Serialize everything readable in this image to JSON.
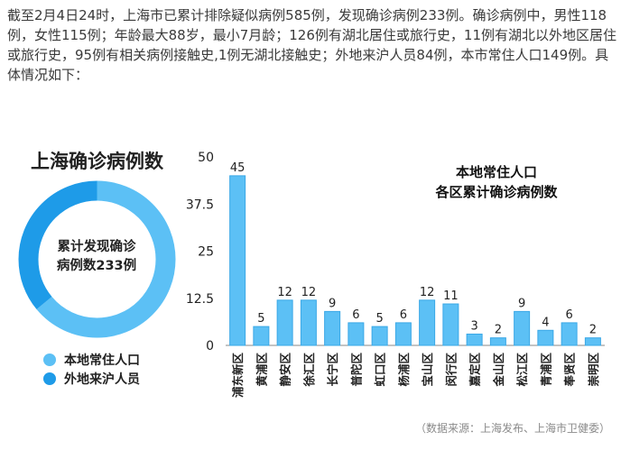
{
  "paragraph": "截至2月4日24时，上海市已累计排除疑似病例585例，发现确诊病例233例。确诊病例中，男性118例，女性115例；年龄最大88岁，最小7月龄；126例有湖北居住或旅行史，11例有湖北以外地区居住或旅行史，95例有相关病例接触史,1例无湖北接触史；外地来沪人员84例，本市常住人口149例。具体情况如下：",
  "donut": {
    "title": "上海确诊病例数",
    "center_line1": "累计发现确诊",
    "center_line2": "病例数233例",
    "segments": [
      {
        "label": "本地常住人口",
        "value": 149,
        "color": "#5cc0f5"
      },
      {
        "label": "外地来沪人员",
        "value": 84,
        "color": "#1e9be8"
      }
    ]
  },
  "chart_data": {
    "type": "bar",
    "title_line1": "本地常住人口",
    "title_line2": "各区累计确诊病例数",
    "categories": [
      "浦东新区",
      "黄浦区",
      "静安区",
      "徐汇区",
      "长宁区",
      "普陀区",
      "虹口区",
      "杨浦区",
      "宝山区",
      "闵行区",
      "嘉定区",
      "金山区",
      "松江区",
      "青浦区",
      "奉贤区",
      "崇明区"
    ],
    "values": [
      45,
      5,
      12,
      12,
      9,
      6,
      5,
      6,
      12,
      11,
      3,
      2,
      9,
      4,
      6,
      2
    ],
    "ylim": [
      0,
      50
    ],
    "yticks": [
      "0",
      "12.5",
      "25",
      "37.5",
      "50"
    ],
    "bar_color": "#5cc0f5",
    "bar_stroke": "#3aa8e6"
  },
  "source": "（数据来源：上海发布、上海市卫健委）"
}
